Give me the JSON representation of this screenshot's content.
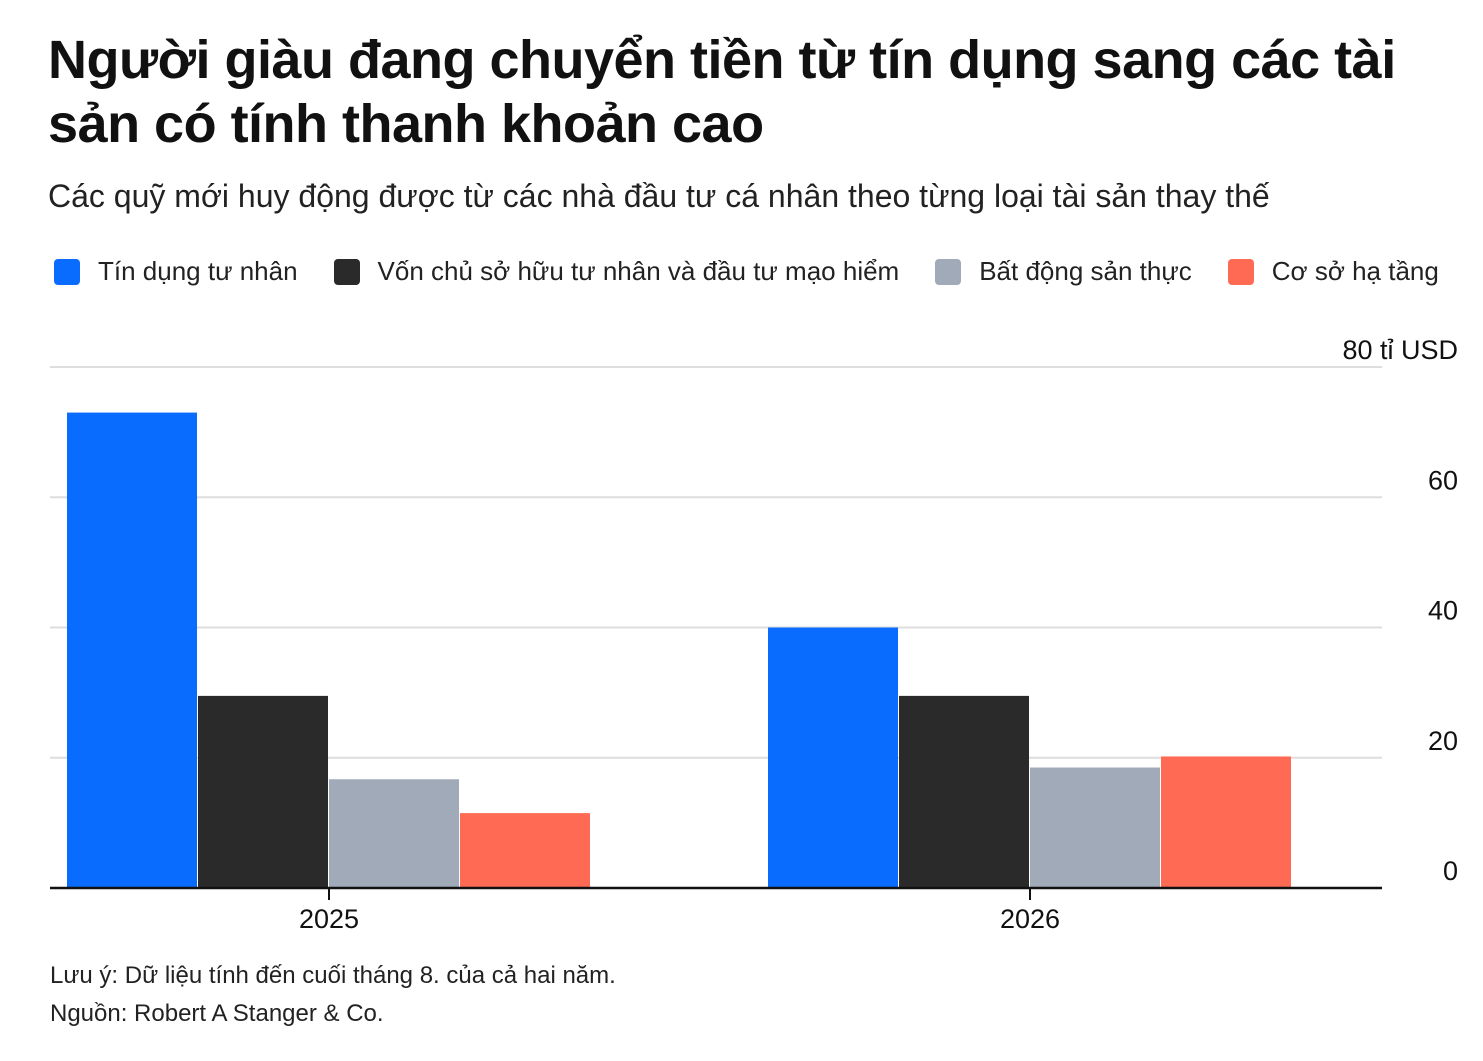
{
  "header": {
    "title": "Người giàu đang chuyển tiền từ tín dụng sang các tài sản có tính thanh khoản cao",
    "subtitle": "Các quỹ mới huy động được từ các nhà đầu tư cá nhân theo từng loại tài sản thay thế"
  },
  "footer": {
    "note": "Lưu ý: Dữ liệu tính đến cuối tháng 8. của cả hai năm.",
    "source": "Nguồn: Robert A Stanger & Co."
  },
  "chart_data": {
    "type": "bar",
    "categories": [
      "2025",
      "2026"
    ],
    "series": [
      {
        "name": "Tín dụng tư nhân",
        "color": "#0a6cff",
        "values": [
          73,
          40
        ]
      },
      {
        "name": "Vốn chủ sở hữu tư nhân và đầu tư mạo hiểm",
        "color": "#2a2a2a",
        "values": [
          29.5,
          29.5
        ]
      },
      {
        "name": "Bất động sản thực",
        "color": "#a0aab8",
        "values": [
          16.7,
          18.5
        ]
      },
      {
        "name": "Cơ sở hạ tầng",
        "color": "#ff6a55",
        "values": [
          11.5,
          20.2
        ]
      }
    ],
    "y_ticks": [
      0,
      20,
      40,
      60,
      80
    ],
    "y_tick_labels": [
      "0",
      "20",
      "40",
      "60",
      "80 tỉ USD"
    ],
    "ylim": [
      0,
      80
    ],
    "y_axis_side": "right",
    "grid": true,
    "legend_placement": "top-left"
  }
}
